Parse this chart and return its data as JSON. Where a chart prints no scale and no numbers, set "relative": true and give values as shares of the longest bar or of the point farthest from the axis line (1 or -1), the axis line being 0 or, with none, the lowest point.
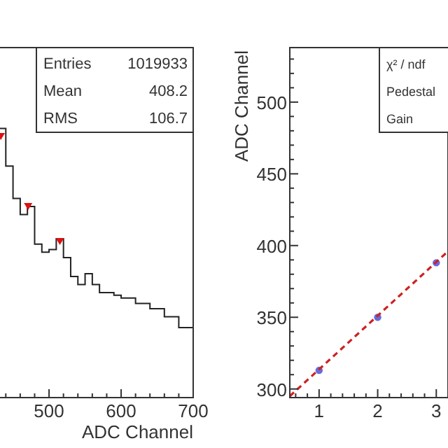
{
  "chart_data": [
    {
      "type": "histogram",
      "xlabel": "ADC Channel",
      "relative": true,
      "xlim": [
        430,
        700
      ],
      "xticks": [
        {
          "value": 440,
          "label": null
        },
        {
          "value": 460,
          "label": null
        },
        {
          "value": 480,
          "label": null
        },
        500,
        {
          "value": 520,
          "label": null
        },
        {
          "value": 540,
          "label": null
        },
        {
          "value": 560,
          "label": null
        },
        {
          "value": 580,
          "label": null
        },
        600,
        {
          "value": 620,
          "label": null
        },
        {
          "value": 640,
          "label": null
        },
        {
          "value": 660,
          "label": null
        },
        {
          "value": 680,
          "label": null
        },
        700
      ],
      "bins": [
        430,
        440,
        450,
        460,
        470,
        480,
        490,
        500,
        510,
        520,
        530,
        540,
        550,
        560,
        570,
        580,
        590,
        600,
        620,
        640,
        660,
        680,
        700
      ],
      "series": [
        {
          "type": "histogram",
          "color": "#222222",
          "values": [
            1,
            0.86,
            0.74,
            0.68,
            0.71,
            0.57,
            0.54,
            0.55,
            0.59,
            0.52,
            0.45,
            0.42,
            0.46,
            0.42,
            0.39,
            0.39,
            0.38,
            0.37,
            0.35,
            0.33,
            0.3,
            0.26
          ]
        },
        {
          "type": "scatter",
          "color": "#dd1111",
          "marker": "triangle",
          "x": [
            433,
            471,
            515
          ],
          "values": [
            0.97,
            0.71,
            0.58
          ]
        }
      ],
      "annotations": [
        "Entries",
        "1019933",
        "Mean",
        "408.2",
        "RMS",
        "106.7"
      ]
    },
    {
      "type": "scatter",
      "ylabel": "ADC Channel",
      "xlim": [
        0.5,
        3.2
      ],
      "xticks": [
        {
          "value": 0.6,
          "label": null
        },
        {
          "value": 0.8,
          "label": null
        },
        1,
        {
          "value": 1.2,
          "label": null
        },
        {
          "value": 1.4,
          "label": null
        },
        {
          "value": 1.6,
          "label": null
        },
        {
          "value": 1.8,
          "label": null
        },
        2,
        {
          "value": 2.2,
          "label": null
        },
        {
          "value": 2.4,
          "label": null
        },
        {
          "value": 2.6,
          "label": null
        },
        {
          "value": 2.8,
          "label": null
        },
        3
      ],
      "ylim": [
        294,
        538
      ],
      "yticks": [
        300,
        {
          "value": 310,
          "label": null
        },
        {
          "value": 320,
          "label": null
        },
        {
          "value": 330,
          "label": null
        },
        {
          "value": 340,
          "label": null
        },
        350,
        {
          "value": 360,
          "label": null
        },
        {
          "value": 370,
          "label": null
        },
        {
          "value": 380,
          "label": null
        },
        {
          "value": 390,
          "label": null
        },
        400,
        {
          "value": 410,
          "label": null
        },
        {
          "value": 420,
          "label": null
        },
        {
          "value": 430,
          "label": null
        },
        {
          "value": 440,
          "label": null
        },
        450,
        {
          "value": 460,
          "label": null
        },
        {
          "value": 470,
          "label": null
        },
        {
          "value": 480,
          "label": null
        },
        {
          "value": 490,
          "label": null
        },
        500,
        {
          "value": 510,
          "label": null
        },
        {
          "value": 520,
          "label": null
        },
        {
          "value": 530,
          "label": null
        }
      ],
      "series": [
        {
          "type": "scatter",
          "color": "#6a6ad8",
          "marker": "circle",
          "x": [
            1,
            2,
            3
          ],
          "values": [
            313,
            350,
            388
          ]
        },
        {
          "type": "line",
          "color": "#cc2222",
          "line_style": "dashed",
          "x": [
            0.5,
            3.2
          ],
          "values": [
            295,
            396
          ]
        }
      ],
      "annotations": [
        "χ² / ndf",
        "Pedestal",
        "Gain"
      ]
    }
  ]
}
